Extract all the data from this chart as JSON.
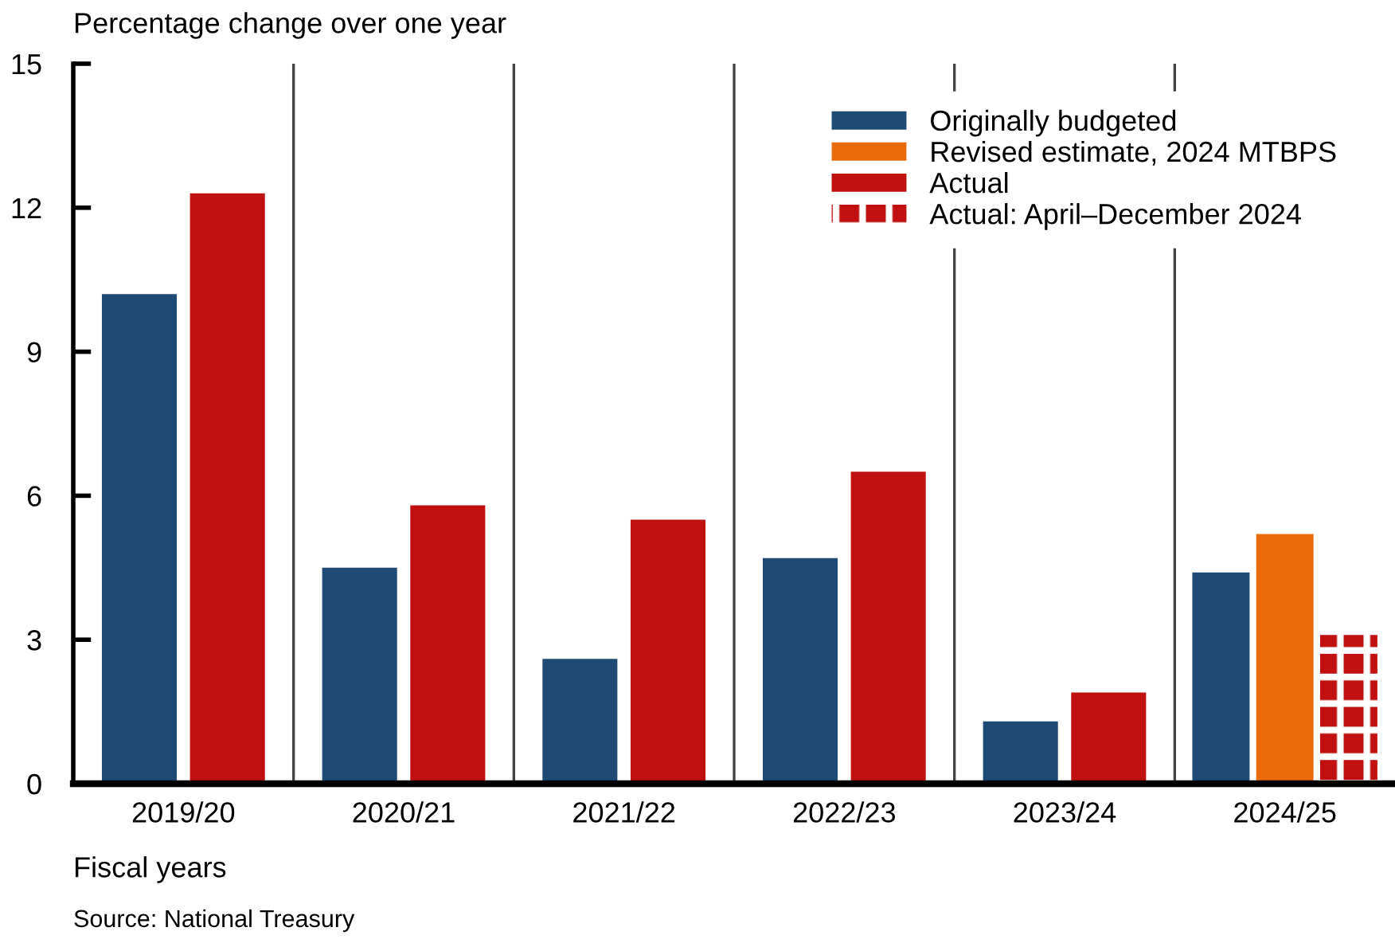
{
  "chart_data": {
    "type": "bar",
    "xlabel": "Fiscal years",
    "ylabel": "Percentage change over one year",
    "categories": [
      "2019/20",
      "2020/21",
      "2021/22",
      "2022/23",
      "2023/24",
      "2024/25"
    ],
    "series": [
      {
        "name": "Originally budgeted",
        "color": "#1f4a75",
        "values": [
          10.2,
          4.5,
          2.6,
          4.7,
          1.3,
          4.4
        ]
      },
      {
        "name": "Revised estimate, 2024 MTBPS",
        "color": "#e96b0a",
        "values": [
          null,
          null,
          null,
          null,
          null,
          5.2
        ]
      },
      {
        "name": "Actual",
        "color": "#c01010",
        "values": [
          12.3,
          5.8,
          5.5,
          6.5,
          1.9,
          null
        ]
      },
      {
        "name": "Actual: April–December 2024",
        "color": "#c01010",
        "values": [
          null,
          null,
          null,
          null,
          null,
          3.1
        ]
      }
    ],
    "ylim": [
      0,
      15
    ],
    "yticks": [
      0,
      3,
      6,
      9,
      12,
      15
    ],
    "grid": false,
    "legend": "top right",
    "annotations": [
      "Source: National Treasury"
    ]
  }
}
